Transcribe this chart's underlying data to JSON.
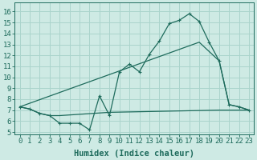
{
  "xlabel": "Humidex (Indice chaleur)",
  "xlim": [
    -0.5,
    23.5
  ],
  "ylim": [
    4.8,
    16.8
  ],
  "yticks": [
    5,
    6,
    7,
    8,
    9,
    10,
    11,
    12,
    13,
    14,
    15,
    16
  ],
  "xticks": [
    0,
    1,
    2,
    3,
    4,
    5,
    6,
    7,
    8,
    9,
    10,
    11,
    12,
    13,
    14,
    15,
    16,
    17,
    18,
    19,
    20,
    21,
    22,
    23
  ],
  "bg_color": "#ceeae4",
  "grid_color": "#aad4cc",
  "line_color": "#1e6b5c",
  "line1_x": [
    0,
    1,
    2,
    3,
    4,
    5,
    6,
    7,
    8,
    9,
    10,
    11,
    12,
    13,
    14,
    15,
    16,
    17,
    18,
    19,
    20,
    21,
    22,
    23
  ],
  "line1_y": [
    7.3,
    7.1,
    6.7,
    6.5,
    5.8,
    5.8,
    5.8,
    5.2,
    8.3,
    6.5,
    10.5,
    11.2,
    10.5,
    12.1,
    13.3,
    14.9,
    15.2,
    15.8,
    15.1,
    13.2,
    11.5,
    7.5,
    7.3,
    7.0
  ],
  "line2_x": [
    0,
    18,
    20,
    21,
    22,
    23
  ],
  "line2_y": [
    7.3,
    13.2,
    11.5,
    7.5,
    7.3,
    7.0
  ],
  "line3_x": [
    0,
    1,
    2,
    3,
    4,
    9,
    20,
    23
  ],
  "line3_y": [
    7.3,
    7.1,
    6.7,
    6.5,
    6.5,
    6.8,
    7.0,
    7.0
  ],
  "font_family": "monospace",
  "tick_fontsize": 6.5,
  "xlabel_fontsize": 7.5
}
